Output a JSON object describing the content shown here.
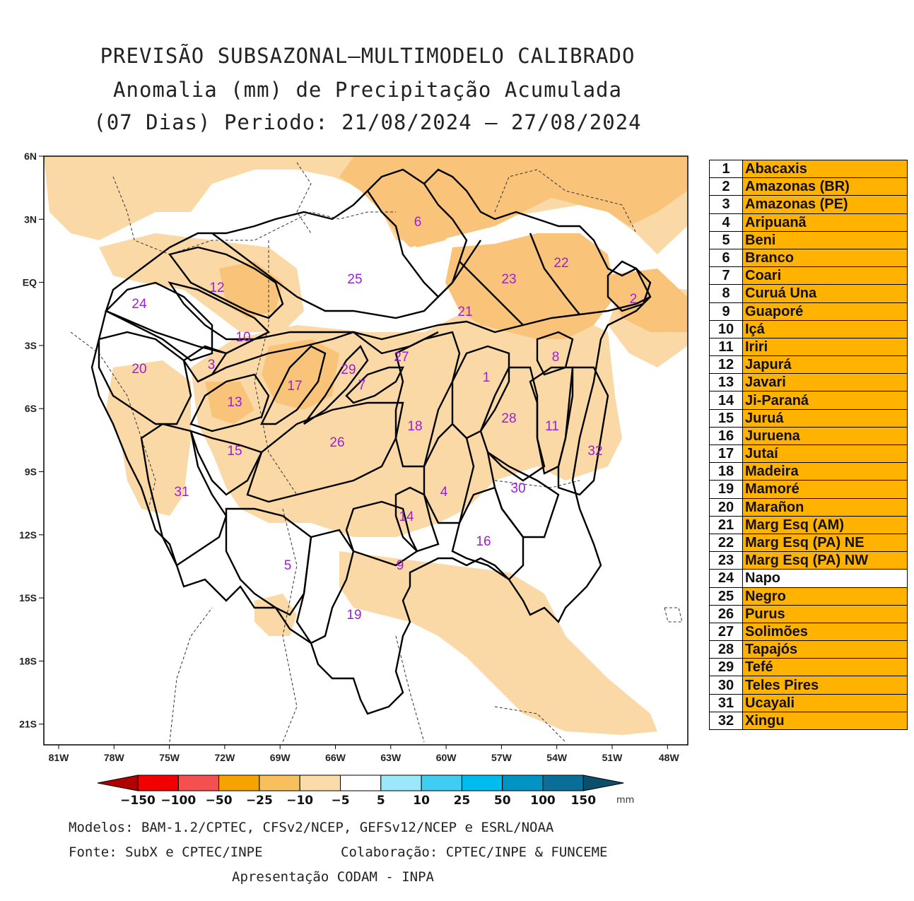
{
  "title": {
    "line1": "PREVISÃO SUBSAZONAL—MULTIMODELO CALIBRADO",
    "line2": "Anomalia (mm) de Precipitação Acumulada",
    "line3": "(07 Dias) Periodo: 21/08/2024 — 27/08/2024"
  },
  "map": {
    "lat_labels": [
      "6N",
      "3N",
      "EQ",
      "3S",
      "6S",
      "9S",
      "12S",
      "15S",
      "18S",
      "21S"
    ],
    "lon_labels": [
      "81W",
      "78W",
      "75W",
      "72W",
      "69W",
      "66W",
      "63W",
      "60W",
      "57W",
      "54W",
      "51W",
      "48W"
    ],
    "region_labels": [
      {
        "id": "1",
        "text": "1"
      },
      {
        "id": "2",
        "text": "2"
      },
      {
        "id": "3",
        "text": "3"
      },
      {
        "id": "4",
        "text": "4"
      },
      {
        "id": "5",
        "text": "5"
      },
      {
        "id": "6",
        "text": "6"
      },
      {
        "id": "7",
        "text": "7"
      },
      {
        "id": "8",
        "text": "8"
      },
      {
        "id": "9",
        "text": "9"
      },
      {
        "id": "10",
        "text": "10"
      },
      {
        "id": "11",
        "text": "11"
      },
      {
        "id": "12",
        "text": "12"
      },
      {
        "id": "13",
        "text": "13"
      },
      {
        "id": "14",
        "text": "14"
      },
      {
        "id": "15",
        "text": "15"
      },
      {
        "id": "16",
        "text": "16"
      },
      {
        "id": "17",
        "text": "17"
      },
      {
        "id": "18",
        "text": "18"
      },
      {
        "id": "19",
        "text": "19"
      },
      {
        "id": "20",
        "text": "20"
      },
      {
        "id": "21",
        "text": "21"
      },
      {
        "id": "22",
        "text": "22"
      },
      {
        "id": "23",
        "text": "23"
      },
      {
        "id": "24",
        "text": "24"
      },
      {
        "id": "25",
        "text": "25"
      },
      {
        "id": "26",
        "text": "26"
      },
      {
        "id": "27",
        "text": "27"
      },
      {
        "id": "28",
        "text": "28"
      },
      {
        "id": "29",
        "text": "29"
      },
      {
        "id": "30",
        "text": "30"
      },
      {
        "id": "31",
        "text": "31"
      },
      {
        "id": "32",
        "text": "32"
      }
    ],
    "label_color": "#9b1fd6",
    "shade_colors": {
      "light": "#fbd9a6",
      "medium": "#f9c47a",
      "dark": "#f4ac47"
    }
  },
  "colorbar": {
    "labels": [
      "−150",
      "−100",
      "−50",
      "−25",
      "−10",
      "−5",
      "5",
      "10",
      "25",
      "50",
      "100",
      "150"
    ],
    "colors": [
      "#b10000",
      "#f20000",
      "#f55050",
      "#f6a300",
      "#f8c05c",
      "#fbdca8",
      "#ffffff",
      "#9be8fb",
      "#3fcdf2",
      "#00bcee",
      "#0093c4",
      "#0a6f98",
      "#0c4f6c"
    ],
    "unit": "mm"
  },
  "basins": [
    {
      "num": "1",
      "name": "Abacaxis",
      "highlight": true
    },
    {
      "num": "2",
      "name": "Amazonas (BR)",
      "highlight": true
    },
    {
      "num": "3",
      "name": "Amazonas (PE)",
      "highlight": true
    },
    {
      "num": "4",
      "name": "Aripuanã",
      "highlight": true
    },
    {
      "num": "5",
      "name": "Beni",
      "highlight": true
    },
    {
      "num": "6",
      "name": "Branco",
      "highlight": true
    },
    {
      "num": "7",
      "name": "Coari",
      "highlight": true
    },
    {
      "num": "8",
      "name": "Curuá Una",
      "highlight": true
    },
    {
      "num": "9",
      "name": "Guaporé",
      "highlight": true
    },
    {
      "num": "10",
      "name": "Içá",
      "highlight": true
    },
    {
      "num": "11",
      "name": "Iriri",
      "highlight": true
    },
    {
      "num": "12",
      "name": "Japurá",
      "highlight": true
    },
    {
      "num": "13",
      "name": "Javari",
      "highlight": true
    },
    {
      "num": "14",
      "name": "Ji-Paraná",
      "highlight": true
    },
    {
      "num": "15",
      "name": "Juruá",
      "highlight": true
    },
    {
      "num": "16",
      "name": "Juruena",
      "highlight": true
    },
    {
      "num": "17",
      "name": "Jutaí",
      "highlight": true
    },
    {
      "num": "18",
      "name": "Madeira",
      "highlight": true
    },
    {
      "num": "19",
      "name": "Mamoré",
      "highlight": true
    },
    {
      "num": "20",
      "name": "Marañon",
      "highlight": true
    },
    {
      "num": "21",
      "name": "Marg Esq (AM)",
      "highlight": true
    },
    {
      "num": "22",
      "name": "Marg Esq (PA) NE",
      "highlight": true
    },
    {
      "num": "23",
      "name": "Marg Esq (PA) NW",
      "highlight": true
    },
    {
      "num": "24",
      "name": "Napo",
      "highlight": false
    },
    {
      "num": "25",
      "name": "Negro",
      "highlight": true
    },
    {
      "num": "26",
      "name": "Purus",
      "highlight": true
    },
    {
      "num": "27",
      "name": "Solimões",
      "highlight": true
    },
    {
      "num": "28",
      "name": "Tapajós",
      "highlight": true
    },
    {
      "num": "29",
      "name": "Tefé",
      "highlight": true
    },
    {
      "num": "30",
      "name": "Teles Pires",
      "highlight": true
    },
    {
      "num": "31",
      "name": "Ucayali",
      "highlight": true
    },
    {
      "num": "32",
      "name": "Xingu",
      "highlight": true
    }
  ],
  "footer": {
    "models": "Modelos: BAM-1.2/CPTEC, CFSv2/NCEP, GEFSv12/NCEP e ESRL/NOAA",
    "source": "Fonte: SubX e CPTEC/INPE",
    "collab": "Colaboração: CPTEC/INPE & FUNCEME",
    "presentation": "Apresentação CODAM - INPA"
  }
}
